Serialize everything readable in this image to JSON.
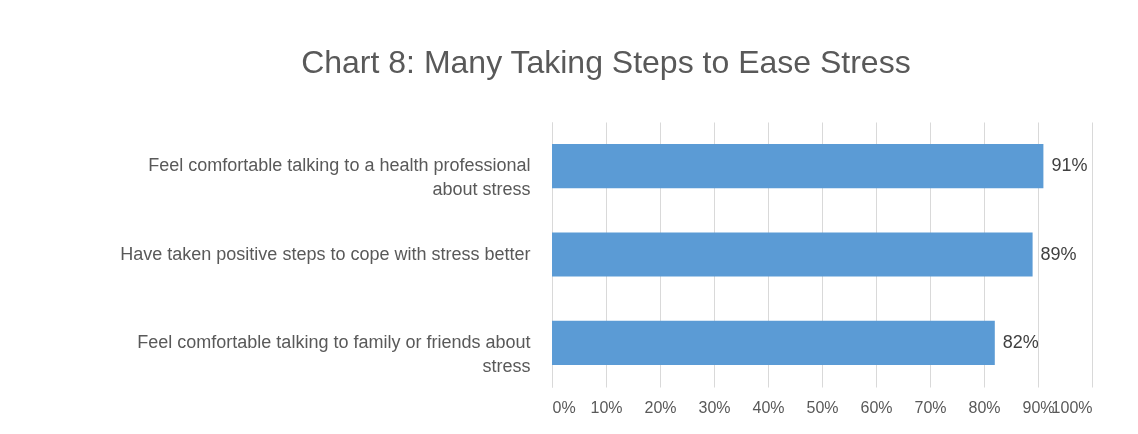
{
  "chart_data": {
    "type": "bar",
    "orientation": "horizontal",
    "title": "Chart 8: Many Taking Steps to Ease Stress",
    "categories": [
      "Feel comfortable talking to a health professional about stress",
      "Have taken positive steps to cope with stress better",
      "Feel comfortable talking to family or friends about stress"
    ],
    "values": [
      91,
      89,
      82
    ],
    "color": "#5b9bd5",
    "value_labels": [
      "91%",
      "89%",
      "82%"
    ],
    "xlim": [
      0,
      100
    ],
    "xticks": [
      {
        "value": 0,
        "label": "0%"
      },
      {
        "value": 10,
        "label": "10%"
      },
      {
        "value": 20,
        "label": "20%"
      },
      {
        "value": 30,
        "label": "30%"
      },
      {
        "value": 40,
        "label": "40%"
      },
      {
        "value": 50,
        "label": "50%"
      },
      {
        "value": 60,
        "label": "60%"
      },
      {
        "value": 70,
        "label": "70%"
      },
      {
        "value": 80,
        "label": "80%"
      },
      {
        "value": 90,
        "label": "90%"
      },
      {
        "value": 100,
        "label": "100%"
      }
    ],
    "grid": "x"
  }
}
